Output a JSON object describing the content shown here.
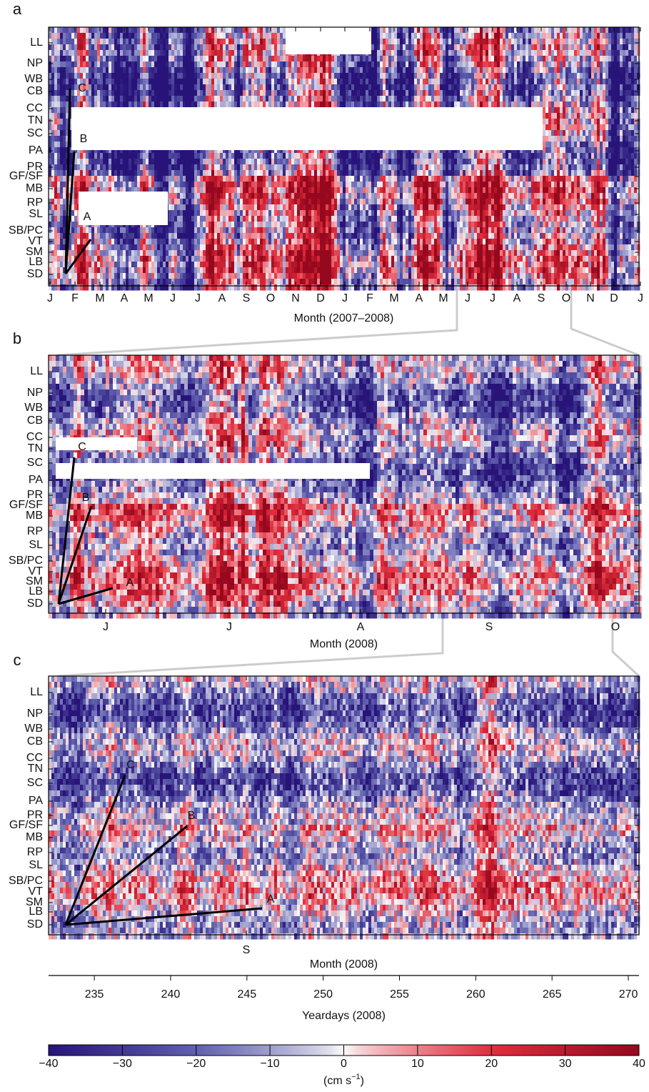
{
  "chart_data": [
    {
      "type": "heatmap",
      "panel_label": "a",
      "rows": [
        "LL",
        "NP",
        "WB",
        "CB",
        "CC",
        "TN",
        "SC",
        "PA",
        "PR",
        "GF/SF",
        "MB",
        "RP",
        "SL",
        "SB/PC",
        "VT",
        "SM",
        "LB",
        "SD"
      ],
      "x_tick_labels": [
        "J",
        "F",
        "M",
        "A",
        "M",
        "J",
        "J",
        "A",
        "S",
        "O",
        "N",
        "D",
        "J",
        "F",
        "M",
        "A",
        "M",
        "J",
        "J",
        "A",
        "S",
        "O",
        "N",
        "D",
        "J"
      ],
      "xlabel": "Month (2007–2008)",
      "annotations": [
        "C",
        "B",
        "A"
      ]
    },
    {
      "type": "heatmap",
      "panel_label": "b",
      "rows": [
        "LL",
        "NP",
        "WB",
        "CB",
        "CC",
        "TN",
        "SC",
        "PA",
        "PR",
        "GF/SF",
        "MB",
        "RP",
        "SL",
        "SB/PC",
        "VT",
        "SM",
        "LB",
        "SD"
      ],
      "x_tick_labels": [
        "J",
        "J",
        "A",
        "S",
        "O"
      ],
      "xlabel": "Month (2008)",
      "annotations": [
        "C",
        "B",
        "A"
      ]
    },
    {
      "type": "heatmap",
      "panel_label": "c",
      "rows": [
        "LL",
        "NP",
        "WB",
        "CB",
        "CC",
        "TN",
        "SC",
        "PA",
        "PR",
        "GF/SF",
        "MB",
        "RP",
        "SL",
        "SB/PC",
        "VT",
        "SM",
        "LB",
        "SD"
      ],
      "x_tick_labels": [
        "S"
      ],
      "xlabel": "Month (2008)",
      "annotations": [
        "C",
        "B",
        "A"
      ],
      "x2label": "Yeardays (2008)",
      "x2lim": [
        232,
        270.7
      ],
      "x2ticks": [
        235,
        240,
        245,
        250,
        255,
        260,
        265,
        270
      ]
    },
    {
      "type": "colorbar",
      "lim": [
        -40,
        40
      ],
      "ticks": [
        {
          "value": -40,
          "label": "−40"
        },
        {
          "value": -30,
          "label": "−30"
        },
        {
          "value": -20,
          "label": "−20"
        },
        {
          "value": -10,
          "label": "−10"
        },
        0,
        10,
        20,
        30,
        40
      ],
      "label_prefix": "(cm s",
      "label_exponent": "−1",
      "label_suffix": ")"
    }
  ]
}
